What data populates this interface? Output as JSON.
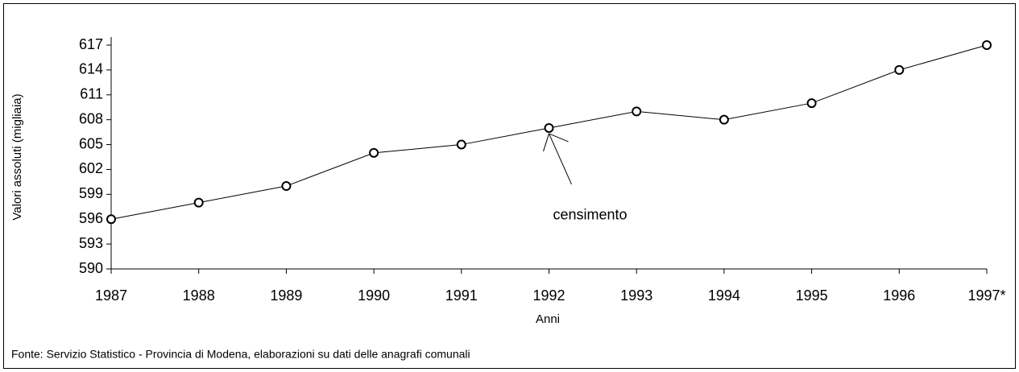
{
  "chart_data": {
    "type": "line",
    "y_label": "Valori assoluti  (migliaia)",
    "x_label": "Anni",
    "source": "Fonte: Servizio Statistico - Provincia di Modena, elaborazioni su dati delle anagrafi comunali",
    "annotation": "censimento",
    "categories": [
      "1987",
      "1988",
      "1989",
      "1990",
      "1991",
      "1992",
      "1993",
      "1994",
      "1995",
      "1996",
      "1997*"
    ],
    "values": [
      596,
      598,
      600,
      604,
      605,
      607,
      609,
      608,
      610,
      614,
      617
    ],
    "color": "#000000",
    "ylim": [
      590,
      617
    ],
    "yticks": [
      590,
      593,
      596,
      599,
      602,
      605,
      608,
      611,
      614,
      617
    ],
    "grid": false
  }
}
